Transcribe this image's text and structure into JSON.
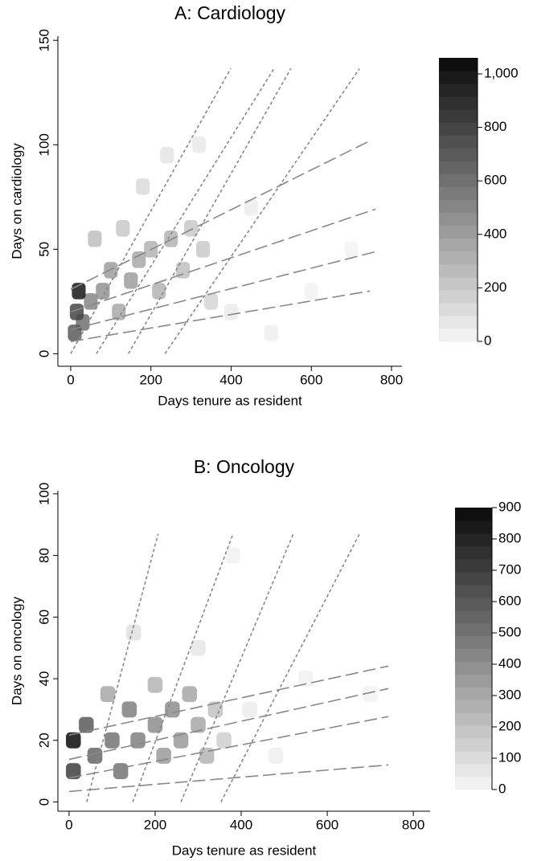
{
  "chart_data": [
    {
      "type": "density",
      "title": "A: Cardiology",
      "x_label": "Days tenure as resident",
      "y_label": "Days on cardiology",
      "xlim": [
        -32,
        826
      ],
      "ylim": [
        -6,
        152
      ],
      "xticks": [
        0,
        200,
        400,
        600,
        800
      ],
      "yticks": [
        0,
        50,
        100,
        150
      ],
      "density": {
        "x": [
          10,
          20,
          15,
          30,
          50,
          80,
          100,
          120,
          150,
          170,
          200,
          220,
          250,
          280,
          300,
          330,
          350,
          180,
          240,
          320,
          400,
          450,
          500,
          600,
          700,
          60,
          130
        ],
        "y": [
          10,
          30,
          20,
          15,
          25,
          30,
          40,
          20,
          35,
          45,
          50,
          30,
          55,
          40,
          60,
          50,
          25,
          80,
          95,
          100,
          20,
          70,
          10,
          30,
          50,
          55,
          60
        ],
        "values": [
          700,
          1000,
          800,
          600,
          500,
          450,
          400,
          350,
          400,
          350,
          300,
          300,
          300,
          250,
          200,
          200,
          150,
          120,
          80,
          60,
          50,
          40,
          30,
          20,
          15,
          250,
          200
        ]
      },
      "colorbar": {
        "clim": [
          0,
          1060
        ],
        "ticks": [
          0,
          200,
          400,
          600,
          800,
          {
            "value": 1000,
            "label": "1,000"
          }
        ]
      },
      "series": [
        {
          "style": "dotted",
          "color": "#888888",
          "x": [
            0,
            399
          ],
          "values": [
            0,
            136.5
          ]
        },
        {
          "style": "dotted",
          "color": "#888888",
          "x": [
            64,
            507
          ],
          "values": [
            0,
            136.5
          ]
        },
        {
          "style": "dotted",
          "color": "#888888",
          "x": [
            144,
            549
          ],
          "values": [
            0,
            136.5
          ]
        },
        {
          "style": "dotted",
          "color": "#888888",
          "x": [
            235,
            720
          ],
          "values": [
            0,
            136.5
          ]
        },
        {
          "style": "dashed",
          "color": "#888888",
          "x": [
            0,
            746
          ],
          "values": [
            30.8,
            101.9
          ]
        },
        {
          "style": "dashed",
          "color": "#888888",
          "x": [
            0,
            760
          ],
          "values": [
            20,
            69.2
          ]
        },
        {
          "style": "dashed",
          "color": "#888888",
          "x": [
            0,
            760
          ],
          "values": [
            11.5,
            48.8
          ]
        },
        {
          "style": "dashed",
          "color": "#888888",
          "x": [
            0,
            746
          ],
          "values": [
            5.8,
            30
          ]
        }
      ]
    },
    {
      "type": "density",
      "title": "B: Oncology",
      "x_label": "Days tenure as resident",
      "y_label": "Days on oncology",
      "xlim": [
        -26,
        839
      ],
      "ylim": [
        -3,
        101
      ],
      "xticks": [
        0,
        200,
        400,
        600,
        800
      ],
      "yticks": [
        0,
        20,
        40,
        60,
        80,
        100
      ],
      "density": {
        "x": [
          10,
          10,
          40,
          60,
          100,
          120,
          140,
          160,
          200,
          220,
          240,
          260,
          280,
          300,
          320,
          340,
          360,
          90,
          200,
          150,
          300,
          420,
          480,
          550,
          700,
          380
        ],
        "y": [
          20,
          10,
          25,
          15,
          20,
          10,
          30,
          20,
          25,
          15,
          30,
          20,
          35,
          25,
          15,
          30,
          20,
          35,
          38,
          55,
          50,
          30,
          15,
          40,
          35,
          80
        ],
        "values": [
          900,
          700,
          600,
          550,
          500,
          500,
          450,
          450,
          400,
          350,
          400,
          350,
          300,
          300,
          250,
          200,
          150,
          300,
          250,
          80,
          60,
          40,
          30,
          20,
          15,
          20
        ]
      },
      "colorbar": {
        "clim": [
          0,
          900
        ],
        "ticks": [
          0,
          100,
          200,
          300,
          400,
          500,
          600,
          700,
          800,
          900
        ]
      },
      "series": [
        {
          "style": "dotted",
          "color": "#888888",
          "x": [
            41,
            207
          ],
          "values": [
            0,
            87
          ]
        },
        {
          "style": "dotted",
          "color": "#888888",
          "x": [
            148,
            381
          ],
          "values": [
            0,
            87
          ]
        },
        {
          "style": "dotted",
          "color": "#888888",
          "x": [
            260,
            521
          ],
          "values": [
            0,
            87
          ]
        },
        {
          "style": "dotted",
          "color": "#888888",
          "x": [
            353,
            675
          ],
          "values": [
            0,
            87
          ]
        },
        {
          "style": "dashed",
          "color": "#888888",
          "x": [
            0,
            742
          ],
          "values": [
            21.7,
            44.1
          ]
        },
        {
          "style": "dashed",
          "color": "#888888",
          "x": [
            0,
            742
          ],
          "values": [
            13.8,
            36.8
          ]
        },
        {
          "style": "dashed",
          "color": "#888888",
          "x": [
            0,
            742
          ],
          "values": [
            7.8,
            27.7
          ]
        },
        {
          "style": "dashed",
          "color": "#888888",
          "x": [
            0,
            742
          ],
          "values": [
            3.4,
            12
          ]
        }
      ]
    }
  ]
}
